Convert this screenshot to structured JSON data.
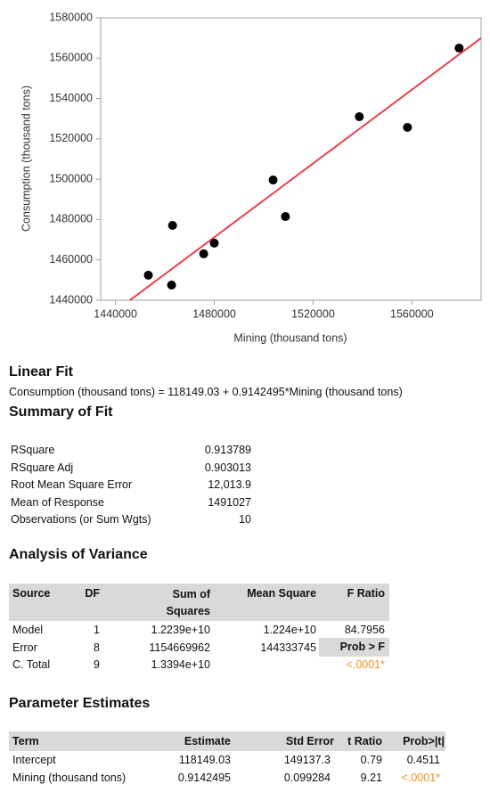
{
  "chart_data": {
    "type": "scatter",
    "x_label": "Mining (thousand tons)",
    "y_label": "Consumption (thousand tons)",
    "x": [
      1453300,
      1462700,
      1463100,
      1475700,
      1480000,
      1503800,
      1508800,
      1538700,
      1558200,
      1579100
    ],
    "y": [
      1452400,
      1447500,
      1477100,
      1463000,
      1468300,
      1499600,
      1481500,
      1531000,
      1525700,
      1565000
    ],
    "color": "#000000",
    "xlim": [
      1434000,
      1588000
    ],
    "ylim": [
      1440000,
      1580000
    ],
    "xticks": [
      1440000,
      1480000,
      1520000,
      1560000
    ],
    "yticks": [
      1440000,
      1460000,
      1480000,
      1500000,
      1520000,
      1540000,
      1560000,
      1580000
    ],
    "fit": {
      "intercept": 118149.03,
      "slope": 0.9142495,
      "color": "#e8414e"
    }
  },
  "linear_fit": {
    "title": "Linear Fit",
    "equation": "Consumption (thousand tons) = 118149.03 + 0.9142495*Mining (thousand tons)"
  },
  "summary_of_fit": {
    "title": "Summary of Fit",
    "rows": [
      [
        "RSquare",
        "0.913789"
      ],
      [
        "RSquare Adj",
        "0.903013"
      ],
      [
        "Root Mean Square Error",
        "12,013.9"
      ],
      [
        "Mean of Response",
        "1491027"
      ],
      [
        "Observations (or Sum Wgts)",
        "10"
      ]
    ]
  },
  "analysis_of_variance": {
    "title": "Analysis of Variance",
    "headers": [
      "Source",
      "DF",
      "Sum of Squares",
      "Mean Square",
      "F Ratio"
    ],
    "rows": [
      [
        "Model",
        "1",
        "1.2239e+10",
        "1.224e+10",
        "84.7956"
      ],
      [
        "Error",
        "8",
        "1154669962",
        "144333745"
      ],
      [
        "C. Total",
        "9",
        "1.3394e+10"
      ]
    ],
    "prob_label": "Prob > F",
    "prob_value": "<.0001*"
  },
  "parameter_estimates": {
    "title": "Parameter Estimates",
    "headers": [
      "Term",
      "Estimate",
      "Std Error",
      "t Ratio",
      "Prob>|t|"
    ],
    "rows": [
      [
        "Intercept",
        "118149.03",
        "149137.3",
        "0.79",
        "0.4511"
      ],
      [
        "Mining (thousand tons)",
        "0.9142495",
        "0.099284",
        "9.21",
        "<.0001*"
      ]
    ]
  }
}
